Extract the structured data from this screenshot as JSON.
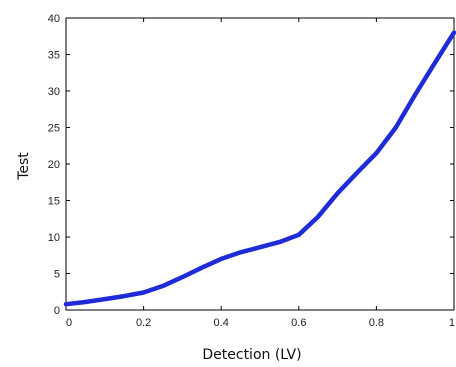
{
  "chart_data": {
    "type": "line",
    "title": "",
    "xlabel": "Detection (LV)",
    "ylabel": "Test",
    "xlim": [
      0,
      1
    ],
    "ylim": [
      0,
      40
    ],
    "xticks": [
      0,
      0.2,
      0.4,
      0.6,
      0.8,
      1
    ],
    "xtick_labels": [
      "0",
      "0.2",
      "0.4",
      "0.6",
      "0.8",
      "1"
    ],
    "yticks": [
      0,
      5,
      10,
      15,
      20,
      25,
      30,
      35,
      40
    ],
    "ytick_labels": [
      "0",
      "5",
      "10",
      "15",
      "20",
      "25",
      "30",
      "35",
      "40"
    ],
    "grid": false,
    "series": [
      {
        "color": "#1f2bd6",
        "x": [
          0,
          0.05,
          0.1,
          0.15,
          0.2,
          0.25,
          0.3,
          0.35,
          0.4,
          0.45,
          0.5,
          0.55,
          0.6,
          0.65,
          0.7,
          0.75,
          0.8,
          0.85,
          0.9,
          0.95,
          1.0
        ],
        "y": [
          0.8,
          1.1,
          1.5,
          1.9,
          2.4,
          3.3,
          4.5,
          5.8,
          7.0,
          7.9,
          8.6,
          9.3,
          10.3,
          12.8,
          16.0,
          18.8,
          21.5,
          25.0,
          29.5,
          33.8,
          38.0
        ]
      }
    ]
  }
}
